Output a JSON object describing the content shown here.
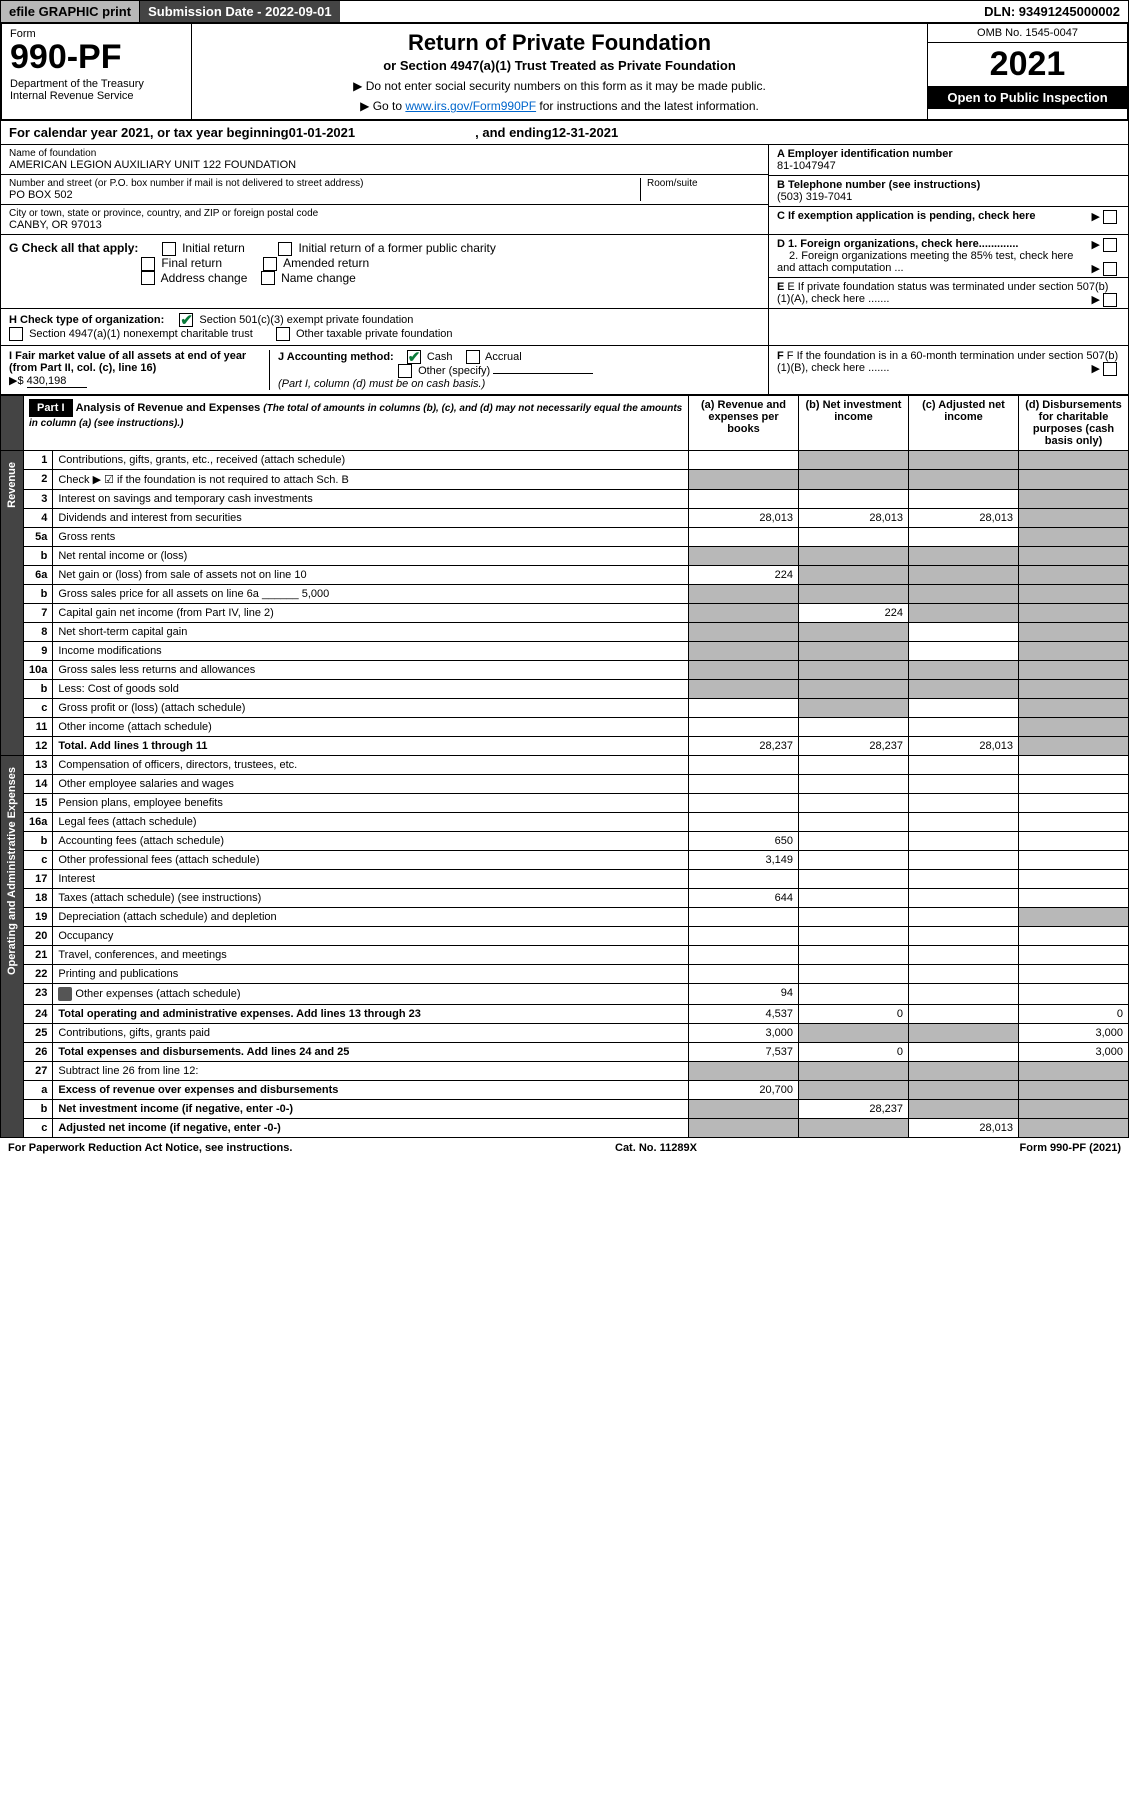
{
  "topbar": {
    "efile": "efile GRAPHIC print",
    "submission_label": "Submission Date - 2022-09-01",
    "dln": "DLN: 93491245000002"
  },
  "header": {
    "form_word": "Form",
    "form_number": "990-PF",
    "dept1": "Department of the Treasury",
    "dept2": "Internal Revenue Service",
    "title": "Return of Private Foundation",
    "subtitle": "or Section 4947(a)(1) Trust Treated as Private Foundation",
    "note1": "▶ Do not enter social security numbers on this form as it may be made public.",
    "note2_pre": "▶ Go to ",
    "note2_link": "www.irs.gov/Form990PF",
    "note2_post": " for instructions and the latest information.",
    "omb": "OMB No. 1545-0047",
    "year": "2021",
    "inspect": "Open to Public Inspection"
  },
  "calendar": {
    "pre": "For calendar year 2021, or tax year beginning ",
    "begin": "01-01-2021",
    "mid": " , and ending ",
    "end": "12-31-2021"
  },
  "id": {
    "name_label": "Name of foundation",
    "name": "AMERICAN LEGION AUXILIARY UNIT 122 FOUNDATION",
    "addr_label": "Number and street (or P.O. box number if mail is not delivered to street address)",
    "addr": "PO BOX 502",
    "room_label": "Room/suite",
    "city_label": "City or town, state or province, country, and ZIP or foreign postal code",
    "city": "CANBY, OR  97013",
    "a_label": "A Employer identification number",
    "a_val": "81-1047947",
    "b_label": "B Telephone number (see instructions)",
    "b_val": "(503) 319-7041",
    "c_label": "C If exemption application is pending, check here"
  },
  "g": {
    "label": "G Check all that apply:",
    "opts": [
      "Initial return",
      "Final return",
      "Address change",
      "Initial return of a former public charity",
      "Amended return",
      "Name change"
    ],
    "d1": "D 1. Foreign organizations, check here.............",
    "d2": "2. Foreign organizations meeting the 85% test, check here and attach computation ...",
    "e": "E  If private foundation status was terminated under section 507(b)(1)(A), check here .......",
    "f": "F  If the foundation is in a 60-month termination under section 507(b)(1)(B), check here ......."
  },
  "h": {
    "label": "H Check type of organization:",
    "opt1": "Section 501(c)(3) exempt private foundation",
    "opt2": "Section 4947(a)(1) nonexempt charitable trust",
    "opt3": "Other taxable private foundation"
  },
  "i": {
    "label": "I Fair market value of all assets at end of year (from Part II, col. (c), line 16)",
    "val_pre": "▶$ ",
    "val": "430,198"
  },
  "j": {
    "label": "J Accounting method:",
    "cash": "Cash",
    "accrual": "Accrual",
    "other": "Other (specify)",
    "note": "(Part I, column (d) must be on cash basis.)"
  },
  "part1": {
    "label": "Part I",
    "title": "Analysis of Revenue and Expenses",
    "desc": "(The total of amounts in columns (b), (c), and (d) may not necessarily equal the amounts in column (a) (see instructions).)",
    "cols": {
      "a": "(a)  Revenue and expenses per books",
      "b": "(b)  Net investment income",
      "c": "(c)  Adjusted net income",
      "d": "(d)  Disbursements for charitable purposes (cash basis only)"
    }
  },
  "sidelabels": {
    "rev": "Revenue",
    "exp": "Operating and Administrative Expenses"
  },
  "rows": [
    {
      "n": "1",
      "t": "Contributions, gifts, grants, etc., received (attach schedule)",
      "a": "",
      "b": "",
      "c": "",
      "d": "",
      "sb": true,
      "sc": true,
      "sd": true
    },
    {
      "n": "2",
      "t": "Check ▶ ☑ if the foundation is not required to attach Sch. B",
      "a": "",
      "b": "",
      "c": "",
      "d": "",
      "sa": true,
      "sb": true,
      "sc": true,
      "sd": true
    },
    {
      "n": "3",
      "t": "Interest on savings and temporary cash investments",
      "a": "",
      "b": "",
      "c": "",
      "d": "",
      "sd": true
    },
    {
      "n": "4",
      "t": "Dividends and interest from securities",
      "a": "28,013",
      "b": "28,013",
      "c": "28,013",
      "d": "",
      "sd": true
    },
    {
      "n": "5a",
      "t": "Gross rents",
      "a": "",
      "b": "",
      "c": "",
      "d": "",
      "sd": true
    },
    {
      "n": "b",
      "t": "Net rental income or (loss)",
      "a": "",
      "b": "",
      "c": "",
      "d": "",
      "sa": true,
      "sb": true,
      "sc": true,
      "sd": true
    },
    {
      "n": "6a",
      "t": "Net gain or (loss) from sale of assets not on line 10",
      "a": "224",
      "b": "",
      "c": "",
      "d": "",
      "sb": true,
      "sc": true,
      "sd": true
    },
    {
      "n": "b",
      "t": "Gross sales price for all assets on line 6a ______ 5,000",
      "a": "",
      "b": "",
      "c": "",
      "d": "",
      "sa": true,
      "sb": true,
      "sc": true,
      "sd": true
    },
    {
      "n": "7",
      "t": "Capital gain net income (from Part IV, line 2)",
      "a": "",
      "b": "224",
      "c": "",
      "d": "",
      "sa": true,
      "sc": true,
      "sd": true
    },
    {
      "n": "8",
      "t": "Net short-term capital gain",
      "a": "",
      "b": "",
      "c": "",
      "d": "",
      "sa": true,
      "sb": true,
      "sd": true
    },
    {
      "n": "9",
      "t": "Income modifications",
      "a": "",
      "b": "",
      "c": "",
      "d": "",
      "sa": true,
      "sb": true,
      "sd": true
    },
    {
      "n": "10a",
      "t": "Gross sales less returns and allowances",
      "a": "",
      "b": "",
      "c": "",
      "d": "",
      "sa": true,
      "sb": true,
      "sc": true,
      "sd": true
    },
    {
      "n": "b",
      "t": "Less: Cost of goods sold",
      "a": "",
      "b": "",
      "c": "",
      "d": "",
      "sa": true,
      "sb": true,
      "sc": true,
      "sd": true
    },
    {
      "n": "c",
      "t": "Gross profit or (loss) (attach schedule)",
      "a": "",
      "b": "",
      "c": "",
      "d": "",
      "sb": true,
      "sd": true
    },
    {
      "n": "11",
      "t": "Other income (attach schedule)",
      "a": "",
      "b": "",
      "c": "",
      "d": "",
      "sd": true
    },
    {
      "n": "12",
      "t": "Total. Add lines 1 through 11",
      "bold": true,
      "a": "28,237",
      "b": "28,237",
      "c": "28,013",
      "d": "",
      "sd": true
    },
    {
      "n": "13",
      "t": "Compensation of officers, directors, trustees, etc.",
      "a": "",
      "b": "",
      "c": "",
      "d": ""
    },
    {
      "n": "14",
      "t": "Other employee salaries and wages",
      "a": "",
      "b": "",
      "c": "",
      "d": ""
    },
    {
      "n": "15",
      "t": "Pension plans, employee benefits",
      "a": "",
      "b": "",
      "c": "",
      "d": ""
    },
    {
      "n": "16a",
      "t": "Legal fees (attach schedule)",
      "a": "",
      "b": "",
      "c": "",
      "d": ""
    },
    {
      "n": "b",
      "t": "Accounting fees (attach schedule)",
      "a": "650",
      "b": "",
      "c": "",
      "d": ""
    },
    {
      "n": "c",
      "t": "Other professional fees (attach schedule)",
      "a": "3,149",
      "b": "",
      "c": "",
      "d": ""
    },
    {
      "n": "17",
      "t": "Interest",
      "a": "",
      "b": "",
      "c": "",
      "d": ""
    },
    {
      "n": "18",
      "t": "Taxes (attach schedule) (see instructions)",
      "a": "644",
      "b": "",
      "c": "",
      "d": ""
    },
    {
      "n": "19",
      "t": "Depreciation (attach schedule) and depletion",
      "a": "",
      "b": "",
      "c": "",
      "d": "",
      "sd": true
    },
    {
      "n": "20",
      "t": "Occupancy",
      "a": "",
      "b": "",
      "c": "",
      "d": ""
    },
    {
      "n": "21",
      "t": "Travel, conferences, and meetings",
      "a": "",
      "b": "",
      "c": "",
      "d": ""
    },
    {
      "n": "22",
      "t": "Printing and publications",
      "a": "",
      "b": "",
      "c": "",
      "d": ""
    },
    {
      "n": "23",
      "t": "Other expenses (attach schedule)",
      "icon": true,
      "a": "94",
      "b": "",
      "c": "",
      "d": ""
    },
    {
      "n": "24",
      "t": "Total operating and administrative expenses. Add lines 13 through 23",
      "bold": true,
      "a": "4,537",
      "b": "0",
      "c": "",
      "d": "0"
    },
    {
      "n": "25",
      "t": "Contributions, gifts, grants paid",
      "a": "3,000",
      "b": "",
      "c": "",
      "d": "3,000",
      "sb": true,
      "sc": true
    },
    {
      "n": "26",
      "t": "Total expenses and disbursements. Add lines 24 and 25",
      "bold": true,
      "a": "7,537",
      "b": "0",
      "c": "",
      "d": "3,000"
    },
    {
      "n": "27",
      "t": "Subtract line 26 from line 12:",
      "a": "",
      "b": "",
      "c": "",
      "d": "",
      "sa": true,
      "sb": true,
      "sc": true,
      "sd": true
    },
    {
      "n": "a",
      "t": "Excess of revenue over expenses and disbursements",
      "bold": true,
      "a": "20,700",
      "b": "",
      "c": "",
      "d": "",
      "sb": true,
      "sc": true,
      "sd": true
    },
    {
      "n": "b",
      "t": "Net investment income (if negative, enter -0-)",
      "bold": true,
      "a": "",
      "b": "28,237",
      "c": "",
      "d": "",
      "sa": true,
      "sc": true,
      "sd": true
    },
    {
      "n": "c",
      "t": "Adjusted net income (if negative, enter -0-)",
      "bold": true,
      "a": "",
      "b": "",
      "c": "28,013",
      "d": "",
      "sa": true,
      "sb": true,
      "sd": true
    }
  ],
  "footer": {
    "left": "For Paperwork Reduction Act Notice, see instructions.",
    "mid": "Cat. No. 11289X",
    "right": "Form 990-PF (2021)"
  }
}
